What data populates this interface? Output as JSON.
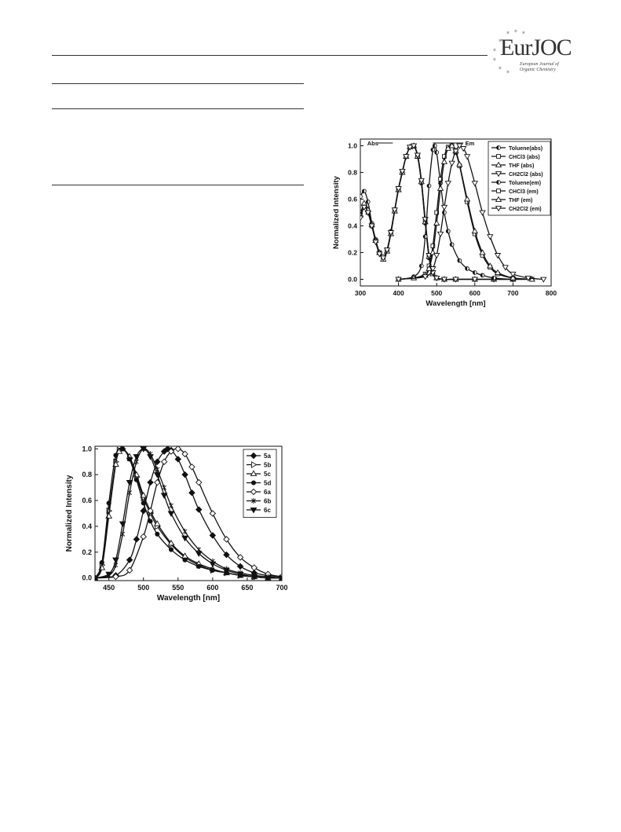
{
  "header": {
    "logo_text": "EurJOC",
    "logo_subtitle": "European Journal of Organic Chemistry"
  },
  "chart_data": [
    {
      "type": "line",
      "xlabel": "Wavelength [nm]",
      "ylabel": "Normalized Intensity",
      "xlim": [
        300,
        800
      ],
      "ylim": [
        -0.05,
        1.05
      ],
      "xticks": [
        "300",
        "400",
        "500",
        "600",
        "700",
        "800"
      ],
      "yticks": [
        "0.0",
        "0.2",
        "0.4",
        "0.6",
        "0.8",
        "1.0"
      ],
      "legend_position": "top-right",
      "annotations": [
        "Abs",
        "Em"
      ],
      "series": [
        {
          "name": "Toluene(abs)",
          "marker": "half-circle",
          "x": [
            300,
            310,
            320,
            330,
            340,
            350,
            360,
            370,
            380,
            390,
            400,
            410,
            420,
            430,
            440,
            450,
            460,
            470,
            480,
            490,
            500,
            520,
            550,
            600,
            650,
            700
          ],
          "y": [
            0.62,
            0.66,
            0.58,
            0.42,
            0.3,
            0.2,
            0.16,
            0.22,
            0.36,
            0.52,
            0.68,
            0.8,
            0.92,
            0.99,
            1.0,
            0.92,
            0.72,
            0.42,
            0.16,
            0.04,
            0.01,
            0.0,
            0.0,
            0.0,
            0.0,
            0.0
          ]
        },
        {
          "name": "CHCl3 (abs)",
          "marker": "square",
          "x": [
            300,
            310,
            320,
            330,
            340,
            350,
            360,
            370,
            380,
            390,
            400,
            410,
            420,
            430,
            440,
            450,
            460,
            470,
            480,
            490,
            500,
            520,
            550,
            600,
            650,
            700
          ],
          "y": [
            0.5,
            0.55,
            0.5,
            0.4,
            0.29,
            0.2,
            0.17,
            0.22,
            0.35,
            0.52,
            0.68,
            0.8,
            0.92,
            0.99,
            1.0,
            0.93,
            0.74,
            0.44,
            0.18,
            0.05,
            0.01,
            0.0,
            0.0,
            0.0,
            0.0,
            0.0
          ]
        },
        {
          "name": "THF (abs)",
          "marker": "triangle-up",
          "x": [
            300,
            310,
            320,
            330,
            340,
            350,
            360,
            370,
            380,
            390,
            400,
            410,
            420,
            430,
            440,
            450,
            460,
            470,
            480,
            490,
            500,
            520,
            550,
            600,
            650,
            700
          ],
          "y": [
            0.48,
            0.57,
            0.52,
            0.41,
            0.29,
            0.2,
            0.15,
            0.21,
            0.34,
            0.51,
            0.67,
            0.8,
            0.92,
            0.99,
            1.0,
            0.92,
            0.73,
            0.43,
            0.17,
            0.04,
            0.01,
            0.0,
            0.0,
            0.0,
            0.0,
            0.0
          ]
        },
        {
          "name": "CH2Cl2 (abs)",
          "marker": "triangle-down",
          "x": [
            300,
            310,
            320,
            330,
            340,
            350,
            360,
            370,
            380,
            390,
            400,
            410,
            420,
            430,
            440,
            450,
            460,
            470,
            480,
            490,
            500,
            520,
            550,
            600,
            650,
            700
          ],
          "y": [
            0.46,
            0.54,
            0.5,
            0.4,
            0.28,
            0.19,
            0.16,
            0.22,
            0.35,
            0.52,
            0.68,
            0.81,
            0.92,
            0.99,
            1.0,
            0.93,
            0.74,
            0.45,
            0.18,
            0.05,
            0.01,
            0.0,
            0.0,
            0.0,
            0.0,
            0.0
          ]
        },
        {
          "name": "Toluene(em)",
          "marker": "half-circle",
          "x": [
            400,
            440,
            460,
            470,
            480,
            490,
            495,
            500,
            510,
            520,
            530,
            540,
            560,
            580,
            600,
            620,
            650,
            700,
            750
          ],
          "y": [
            0.0,
            0.02,
            0.1,
            0.32,
            0.7,
            0.97,
            1.0,
            0.95,
            0.72,
            0.5,
            0.36,
            0.26,
            0.14,
            0.08,
            0.05,
            0.03,
            0.01,
            0.0,
            0.0
          ]
        },
        {
          "name": "CHCl3 (em)",
          "marker": "square",
          "x": [
            400,
            440,
            470,
            480,
            490,
            500,
            510,
            520,
            530,
            540,
            550,
            560,
            580,
            600,
            620,
            640,
            660,
            700,
            750
          ],
          "y": [
            0.0,
            0.01,
            0.04,
            0.1,
            0.25,
            0.5,
            0.75,
            0.92,
            0.99,
            1.0,
            0.95,
            0.85,
            0.58,
            0.34,
            0.18,
            0.09,
            0.04,
            0.01,
            0.0
          ]
        },
        {
          "name": "THF (em)",
          "marker": "triangle-up",
          "x": [
            400,
            440,
            470,
            480,
            490,
            500,
            510,
            520,
            530,
            540,
            550,
            560,
            580,
            600,
            620,
            640,
            660,
            700,
            750
          ],
          "y": [
            0.0,
            0.01,
            0.03,
            0.08,
            0.2,
            0.42,
            0.68,
            0.88,
            0.98,
            1.0,
            0.96,
            0.86,
            0.6,
            0.36,
            0.2,
            0.1,
            0.05,
            0.01,
            0.0
          ]
        },
        {
          "name": "CH2Cl2 (em)",
          "marker": "triangle-down",
          "x": [
            400,
            470,
            490,
            500,
            510,
            520,
            530,
            540,
            550,
            560,
            570,
            580,
            600,
            620,
            640,
            660,
            680,
            700,
            740,
            780
          ],
          "y": [
            0.0,
            0.02,
            0.08,
            0.18,
            0.34,
            0.54,
            0.72,
            0.87,
            0.96,
            1.0,
            0.98,
            0.92,
            0.72,
            0.5,
            0.32,
            0.18,
            0.09,
            0.04,
            0.01,
            0.0
          ]
        }
      ]
    },
    {
      "type": "line",
      "xlabel": "Wavelength [nm]",
      "ylabel": "Normalized Intensity",
      "xlim": [
        430,
        700
      ],
      "ylim": [
        -0.02,
        1.02
      ],
      "xticks": [
        "450",
        "500",
        "550",
        "600",
        "650",
        "700"
      ],
      "yticks": [
        "0.0",
        "0.2",
        "0.4",
        "0.6",
        "0.8",
        "1.0"
      ],
      "legend_position": "top-right",
      "series": [
        {
          "name": "5a",
          "marker": "diamond-filled",
          "x": [
            430,
            460,
            480,
            490,
            500,
            510,
            520,
            530,
            535,
            540,
            550,
            560,
            570,
            580,
            600,
            620,
            640,
            660,
            680,
            700
          ],
          "y": [
            0.0,
            0.02,
            0.14,
            0.3,
            0.52,
            0.74,
            0.9,
            0.98,
            1.0,
            0.99,
            0.92,
            0.8,
            0.66,
            0.53,
            0.33,
            0.18,
            0.09,
            0.04,
            0.02,
            0.01
          ]
        },
        {
          "name": "5b",
          "marker": "triangle-right-open",
          "x": [
            430,
            440,
            450,
            460,
            465,
            470,
            480,
            490,
            500,
            510,
            520,
            540,
            560,
            580,
            600,
            620,
            640,
            660,
            680,
            700
          ],
          "y": [
            0.0,
            0.1,
            0.52,
            0.9,
            0.99,
            1.0,
            0.93,
            0.78,
            0.62,
            0.5,
            0.4,
            0.26,
            0.16,
            0.1,
            0.06,
            0.04,
            0.02,
            0.01,
            0.0,
            0.0
          ]
        },
        {
          "name": "5c",
          "marker": "triangle-up-open",
          "x": [
            430,
            440,
            450,
            460,
            465,
            470,
            480,
            490,
            500,
            510,
            520,
            540,
            560,
            580,
            600,
            620,
            640,
            660,
            680,
            700
          ],
          "y": [
            0.0,
            0.08,
            0.48,
            0.88,
            0.98,
            1.0,
            0.94,
            0.8,
            0.64,
            0.52,
            0.42,
            0.27,
            0.17,
            0.11,
            0.07,
            0.04,
            0.02,
            0.01,
            0.0,
            0.0
          ]
        },
        {
          "name": "5d",
          "marker": "circle-filled",
          "x": [
            430,
            440,
            450,
            460,
            470,
            480,
            490,
            500,
            510,
            520,
            540,
            560,
            580,
            600,
            620,
            640,
            660,
            680,
            700
          ],
          "y": [
            0.0,
            0.12,
            0.58,
            0.95,
            1.0,
            0.92,
            0.76,
            0.58,
            0.44,
            0.34,
            0.22,
            0.14,
            0.09,
            0.06,
            0.04,
            0.02,
            0.01,
            0.0,
            0.0
          ]
        },
        {
          "name": "6a",
          "marker": "diamond-open",
          "x": [
            430,
            460,
            480,
            500,
            510,
            520,
            530,
            540,
            550,
            560,
            570,
            580,
            600,
            620,
            640,
            660,
            680,
            700
          ],
          "y": [
            0.0,
            0.01,
            0.06,
            0.32,
            0.52,
            0.74,
            0.9,
            0.98,
            1.0,
            0.96,
            0.86,
            0.74,
            0.5,
            0.3,
            0.16,
            0.08,
            0.03,
            0.01
          ]
        },
        {
          "name": "6b",
          "marker": "star",
          "x": [
            430,
            450,
            460,
            470,
            480,
            490,
            500,
            510,
            520,
            530,
            540,
            560,
            580,
            600,
            620,
            640,
            660,
            680,
            700
          ],
          "y": [
            0.0,
            0.02,
            0.1,
            0.34,
            0.66,
            0.9,
            1.0,
            0.96,
            0.84,
            0.7,
            0.56,
            0.36,
            0.22,
            0.13,
            0.07,
            0.04,
            0.02,
            0.01,
            0.0
          ]
        },
        {
          "name": "6c",
          "marker": "triangle-down-filled",
          "x": [
            430,
            450,
            460,
            470,
            480,
            490,
            500,
            510,
            520,
            530,
            540,
            560,
            580,
            600,
            620,
            640,
            660,
            680,
            700
          ],
          "y": [
            0.0,
            0.03,
            0.14,
            0.42,
            0.74,
            0.94,
            1.0,
            0.94,
            0.8,
            0.64,
            0.5,
            0.31,
            0.19,
            0.11,
            0.06,
            0.03,
            0.01,
            0.0,
            0.0
          ]
        }
      ]
    }
  ]
}
